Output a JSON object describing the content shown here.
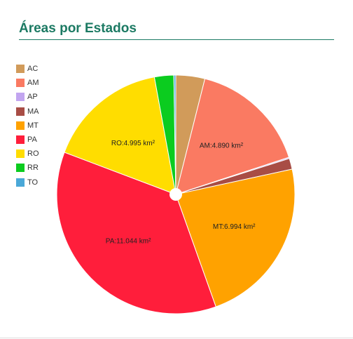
{
  "title": "Áreas por Estados",
  "chart_data": {
    "type": "pie",
    "legend_position": "left",
    "slices": [
      {
        "name": "AC",
        "value": 1.2,
        "color": "#d19b5a",
        "label": ""
      },
      {
        "name": "AM",
        "value": 4.89,
        "color": "#fa7a62",
        "label": "AM:4.890 km²"
      },
      {
        "name": "AP",
        "value": 0.05,
        "color": "#c2a5f0",
        "label": ""
      },
      {
        "name": "MA",
        "value": 0.45,
        "color": "#a84d45",
        "label": ""
      },
      {
        "name": "MT",
        "value": 6.994,
        "color": "#ffa200",
        "label": "MT:6.994 km²"
      },
      {
        "name": "PA",
        "value": 11.044,
        "color": "#ff1e3b",
        "label": "PA:11.044 km²"
      },
      {
        "name": "RO",
        "value": 4.995,
        "color": "#ffdd00",
        "label": "RO:4.995 km²"
      },
      {
        "name": "RR",
        "value": 0.8,
        "color": "#0bcc1f",
        "label": ""
      },
      {
        "name": "TO",
        "value": 0.08,
        "color": "#4aa8d8",
        "label": ""
      }
    ]
  }
}
